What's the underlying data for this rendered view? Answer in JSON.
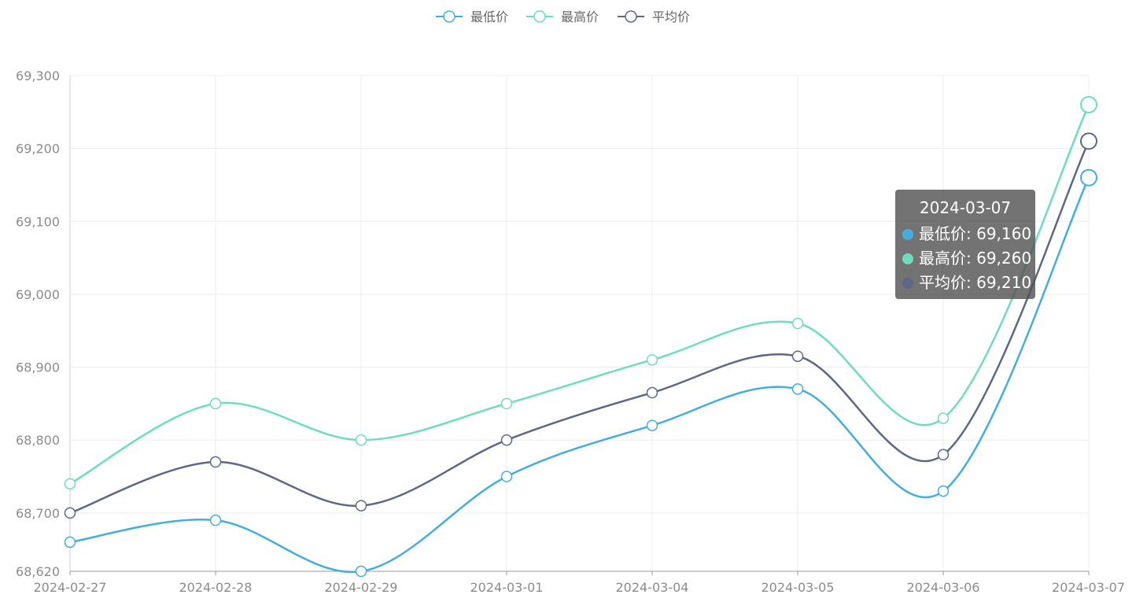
{
  "chart_data": {
    "type": "line",
    "smooth": true,
    "categories": [
      "2024-02-27",
      "2024-02-28",
      "2024-02-29",
      "2024-03-01",
      "2024-03-04",
      "2024-03-05",
      "2024-03-06",
      "2024-03-07"
    ],
    "series": [
      {
        "name": "最低价",
        "color": "#44aedb",
        "values": [
          68660,
          68690,
          68620,
          68750,
          68820,
          68870,
          68730,
          69160
        ]
      },
      {
        "name": "最高价",
        "color": "#6fdcbe",
        "values": [
          68740,
          68850,
          68800,
          68850,
          68910,
          68960,
          68830,
          69260
        ]
      },
      {
        "name": "平均价",
        "color": "#5d6787",
        "values": [
          68700,
          68770,
          68710,
          68800,
          68865,
          68915,
          68780,
          69210
        ]
      }
    ],
    "ylim": [
      68620,
      69300
    ],
    "yticks": [
      68620,
      68700,
      68800,
      68900,
      69000,
      69100,
      69200,
      69300
    ],
    "ytick_labels": [
      "68,620",
      "68,700",
      "68,800",
      "68,900",
      "69,000",
      "69,100",
      "69,200",
      "69,300"
    ],
    "grid": true,
    "legend": "top-center",
    "title": "",
    "xlabel": "",
    "ylabel": ""
  },
  "tooltip": {
    "title": "2024-03-07",
    "rows": [
      {
        "label": "最低价: 69,160",
        "color": "#44aedb"
      },
      {
        "label": "最高价: 69,260",
        "color": "#6fdcbe"
      },
      {
        "label": "平均价: 69,210",
        "color": "#5d6787"
      }
    ]
  }
}
